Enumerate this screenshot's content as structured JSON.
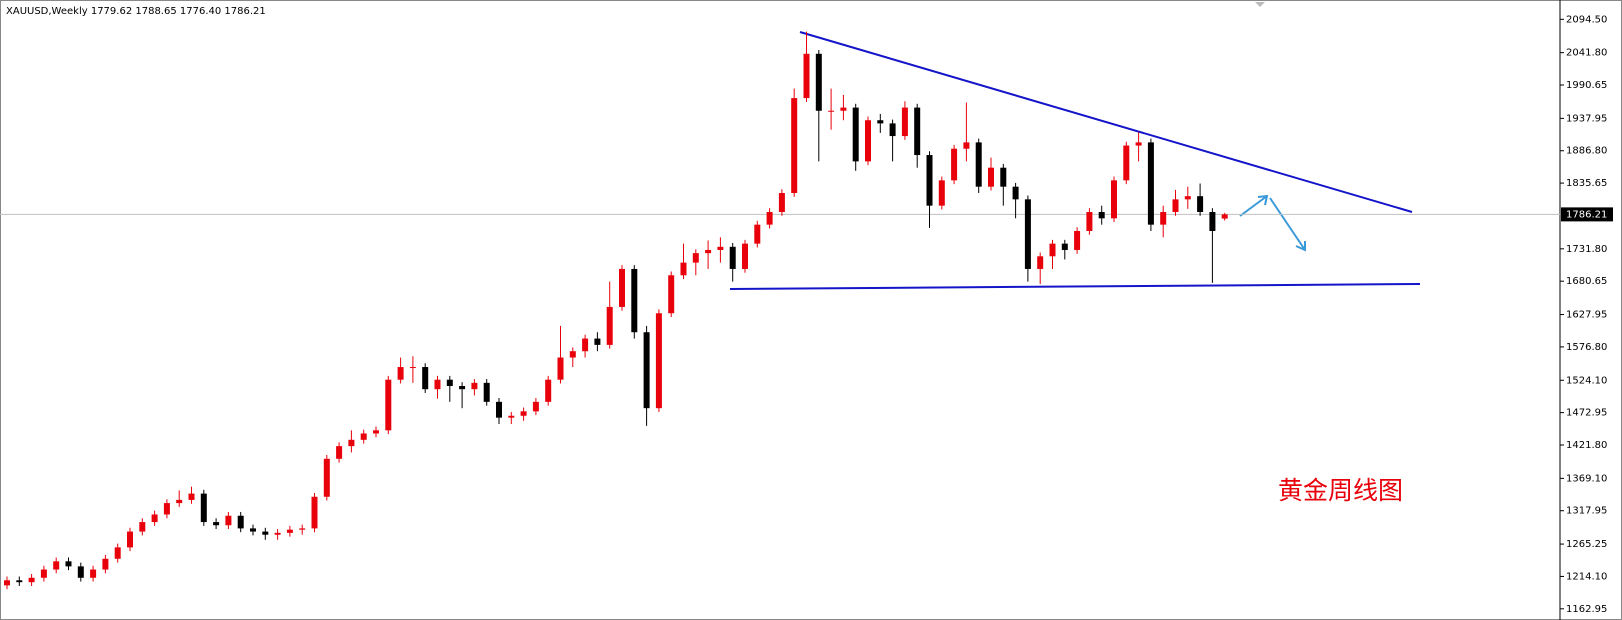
{
  "chart_data": {
    "type": "candlestick",
    "header": "XAUUSD,Weekly  1779.62 1788.65 1776.40 1786.21",
    "annotation": "黄金周线图",
    "up_color": "#e8000b",
    "down_color": "#000000",
    "ylim": [
      1150,
      2125
    ],
    "yticks": [
      {
        "value": 1162.95,
        "label": "1162.95"
      },
      {
        "value": 1214.1,
        "label": "1214.10"
      },
      {
        "value": 1265.25,
        "label": "1265.25"
      },
      {
        "value": 1317.95,
        "label": "1317.95"
      },
      {
        "value": 1369.1,
        "label": "1369.10"
      },
      {
        "value": 1421.8,
        "label": "1421.80"
      },
      {
        "value": 1472.95,
        "label": "1472.95"
      },
      {
        "value": 1524.1,
        "label": "1524.10"
      },
      {
        "value": 1576.8,
        "label": "1576.80"
      },
      {
        "value": 1627.95,
        "label": "1627.95"
      },
      {
        "value": 1680.65,
        "label": "1680.65"
      },
      {
        "value": 1731.8,
        "label": "1731.80"
      },
      {
        "value": 1835.65,
        "label": "1835.65"
      },
      {
        "value": 1886.8,
        "label": "1886.80"
      },
      {
        "value": 1937.95,
        "label": "1937.95"
      },
      {
        "value": 1990.65,
        "label": "1990.65"
      },
      {
        "value": 2041.8,
        "label": "2041.80"
      },
      {
        "value": 2094.5,
        "label": "2094.50"
      }
    ],
    "current_price": {
      "value": 1786.21,
      "label": "1786.21"
    },
    "open": [
      1200,
      1208,
      1205,
      1212,
      1225,
      1238,
      1230,
      1212,
      1225,
      1242,
      1260,
      1285,
      1300,
      1312,
      1330,
      1335,
      1345,
      1300,
      1295,
      1310,
      1290,
      1285,
      1280,
      1283,
      1288,
      1290,
      1340,
      1400,
      1420,
      1430,
      1440,
      1445,
      1525,
      1545,
      1545,
      1510,
      1525,
      1515,
      1510,
      1520,
      1490,
      1465,
      1468,
      1475,
      1490,
      1525,
      1560,
      1570,
      1590,
      1580,
      1640,
      1700,
      1600,
      1480,
      1630,
      1690,
      1710,
      1725,
      1730,
      1735,
      1700,
      1740,
      1770,
      1790,
      1820,
      1970,
      2040,
      1950,
      1950,
      1955,
      1870,
      1935,
      1930,
      1910,
      1955,
      1880,
      1800,
      1840,
      1890,
      1900,
      1830,
      1860,
      1830,
      1810,
      1700,
      1720,
      1740,
      1730,
      1760,
      1790,
      1780,
      1840,
      1895,
      1900,
      1770,
      1790,
      1810,
      1815,
      1790,
      1779.62
    ],
    "high": [
      1214,
      1214,
      1218,
      1231,
      1244,
      1244,
      1236,
      1231,
      1248,
      1266,
      1291,
      1306,
      1318,
      1336,
      1350,
      1356,
      1351,
      1306,
      1316,
      1316,
      1296,
      1291,
      1289,
      1294,
      1296,
      1346,
      1406,
      1426,
      1445,
      1446,
      1451,
      1531,
      1560,
      1562,
      1551,
      1531,
      1531,
      1521,
      1526,
      1526,
      1496,
      1474,
      1481,
      1496,
      1531,
      1610,
      1576,
      1596,
      1600,
      1680,
      1706,
      1706,
      1610,
      1636,
      1696,
      1740,
      1731,
      1745,
      1750,
      1741,
      1746,
      1776,
      1796,
      1826,
      1985,
      2075,
      2046,
      1985,
      1975,
      1961,
      1941,
      1945,
      1936,
      1965,
      1961,
      1886,
      1846,
      1896,
      1963,
      1906,
      1876,
      1866,
      1836,
      1816,
      1726,
      1746,
      1746,
      1766,
      1796,
      1800,
      1846,
      1901,
      1916,
      1906,
      1800,
      1825,
      1830,
      1835,
      1796,
      1788.65
    ],
    "low": [
      1194,
      1199,
      1199,
      1206,
      1219,
      1224,
      1206,
      1206,
      1219,
      1236,
      1254,
      1279,
      1294,
      1306,
      1324,
      1329,
      1294,
      1289,
      1289,
      1284,
      1279,
      1272,
      1272,
      1277,
      1280,
      1284,
      1334,
      1394,
      1410,
      1424,
      1434,
      1439,
      1519,
      1520,
      1504,
      1495,
      1490,
      1480,
      1500,
      1484,
      1455,
      1455,
      1460,
      1469,
      1484,
      1519,
      1545,
      1560,
      1570,
      1574,
      1634,
      1590,
      1452,
      1474,
      1624,
      1684,
      1690,
      1700,
      1710,
      1680,
      1694,
      1734,
      1764,
      1784,
      1814,
      1964,
      1870,
      1920,
      1935,
      1855,
      1864,
      1915,
      1870,
      1904,
      1860,
      1765,
      1794,
      1834,
      1870,
      1820,
      1824,
      1800,
      1780,
      1680,
      1676,
      1700,
      1715,
      1724,
      1754,
      1770,
      1774,
      1834,
      1870,
      1760,
      1750,
      1784,
      1795,
      1784,
      1678,
      1776.4
    ],
    "close": [
      1208,
      1205,
      1212,
      1225,
      1238,
      1230,
      1212,
      1225,
      1242,
      1260,
      1285,
      1300,
      1312,
      1330,
      1335,
      1345,
      1300,
      1295,
      1310,
      1290,
      1285,
      1280,
      1283,
      1288,
      1290,
      1340,
      1400,
      1420,
      1430,
      1440,
      1445,
      1525,
      1545,
      1545,
      1510,
      1525,
      1515,
      1510,
      1520,
      1490,
      1465,
      1468,
      1475,
      1490,
      1525,
      1560,
      1570,
      1590,
      1580,
      1640,
      1700,
      1600,
      1480,
      1630,
      1690,
      1710,
      1725,
      1730,
      1735,
      1700,
      1740,
      1770,
      1790,
      1820,
      1970,
      2040,
      1950,
      1950,
      1955,
      1870,
      1935,
      1930,
      1910,
      1955,
      1880,
      1800,
      1840,
      1890,
      1900,
      1830,
      1860,
      1830,
      1810,
      1700,
      1720,
      1740,
      1730,
      1760,
      1790,
      1780,
      1840,
      1895,
      1900,
      1770,
      1790,
      1810,
      1815,
      1790,
      1760,
      1786.21
    ]
  }
}
